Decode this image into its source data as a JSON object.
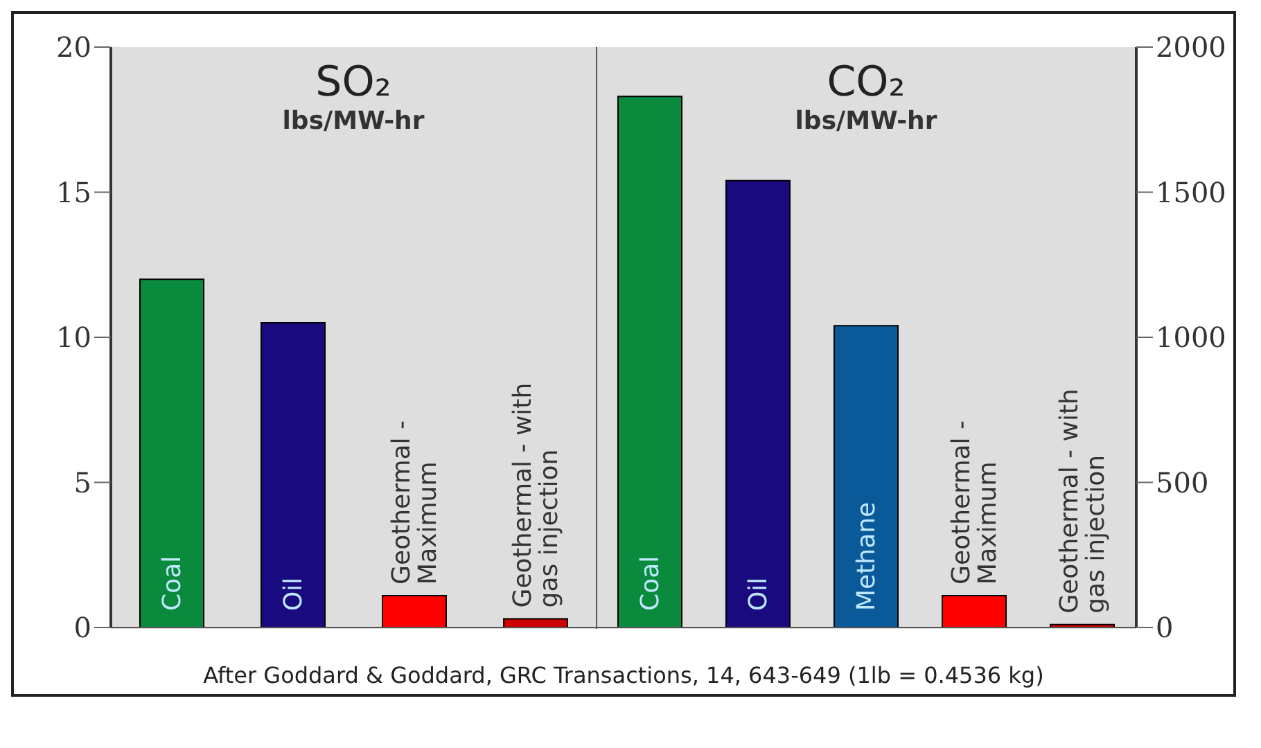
{
  "chart_data": [
    {
      "type": "bar",
      "title": "SO₂",
      "subtitle": "lbs/MW-hr",
      "categories": [
        "Coal",
        "Oil",
        "Geothermal - Maximum",
        "Geothermal - with gas injection"
      ],
      "values": [
        12.0,
        10.5,
        1.1,
        0.3
      ],
      "colors": [
        "#0a8a3c",
        "#1a0a80",
        "#ff0000",
        "#cc0000"
      ],
      "ylim": [
        0,
        20
      ],
      "yticks": [
        0,
        5,
        10,
        15,
        20
      ],
      "annotations": [
        "After Goddard & Goddard, GRC Transactions, 14, 643-649 (1lb = 0.4536 kg)"
      ]
    },
    {
      "type": "bar",
      "title": "CO₂",
      "subtitle": "lbs/MW-hr",
      "categories": [
        "Coal",
        "Oil",
        "Methane",
        "Geothermal - Maximum",
        "Geothermal - with gas injection"
      ],
      "values": [
        1830,
        1540,
        1040,
        110,
        10
      ],
      "colors": [
        "#0a8a3c",
        "#1a0a80",
        "#0a5a9a",
        "#ff0000",
        "#cc0000"
      ],
      "ylim": [
        0,
        2000
      ],
      "yticks": [
        0,
        500,
        1000,
        1500,
        2000
      ]
    }
  ]
}
